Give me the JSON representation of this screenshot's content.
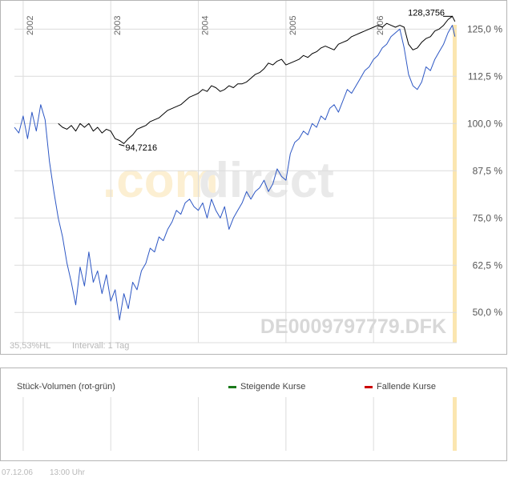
{
  "colors": {
    "grid": "#dcdcdc",
    "frame": "#b5b5b5",
    "blue_series": "#2d57c4",
    "black_series": "#000000",
    "highlight": "#fbe6b0",
    "rising": "#1a7a1a",
    "falling": "#cc0000",
    "watermark_com": "#fcefd2",
    "watermark_direct": "#e9e9e9"
  },
  "watermark": {
    "com": ".com",
    "direct": "direct"
  },
  "symbol_label": "DE0009797779.DFK",
  "info": {
    "hl": "35,53%HL",
    "interval": "Intervall: 1 Tag"
  },
  "footer": {
    "date": "07.12.06",
    "time": "13:00 Uhr"
  },
  "volume_panel": {
    "title": "Stück-Volumen (rot-grün)",
    "legend_rising": "Steigende Kurse",
    "legend_falling": "Fallende Kurse"
  },
  "chart_data": {
    "type": "line",
    "x_ticks": [
      "2002",
      "2003",
      "2004",
      "2005",
      "2006"
    ],
    "y_ticks": [
      "125,0 %",
      "112,5 %",
      "100,0 %",
      "87,5 %",
      "75,0 %",
      "62,5 %",
      "50,0 %"
    ],
    "y_tick_values": [
      125,
      112.5,
      100,
      87.5,
      75,
      62.5,
      50
    ],
    "ylim": [
      42,
      131
    ],
    "xlim": [
      2001.9,
      2006.95
    ],
    "annotations": [
      {
        "text": "94,7216",
        "x": 2003.12,
        "y": 94.72
      },
      {
        "text": "128,3756",
        "x": 2006.85,
        "y": 128.38
      }
    ],
    "series": [
      {
        "color": "#2d57c4",
        "x": [
          2001.9,
          2001.95,
          2002.0,
          2002.05,
          2002.1,
          2002.15,
          2002.2,
          2002.25,
          2002.3,
          2002.35,
          2002.4,
          2002.45,
          2002.5,
          2002.55,
          2002.6,
          2002.65,
          2002.7,
          2002.75,
          2002.8,
          2002.85,
          2002.9,
          2002.95,
          2003.0,
          2003.05,
          2003.1,
          2003.15,
          2003.2,
          2003.25,
          2003.3,
          2003.35,
          2003.4,
          2003.45,
          2003.5,
          2003.55,
          2003.6,
          2003.65,
          2003.7,
          2003.75,
          2003.8,
          2003.85,
          2003.9,
          2003.95,
          2004.0,
          2004.05,
          2004.1,
          2004.15,
          2004.2,
          2004.25,
          2004.3,
          2004.35,
          2004.4,
          2004.45,
          2004.5,
          2004.55,
          2004.6,
          2004.65,
          2004.7,
          2004.75,
          2004.8,
          2004.85,
          2004.9,
          2004.95,
          2005.0,
          2005.05,
          2005.1,
          2005.15,
          2005.2,
          2005.25,
          2005.3,
          2005.35,
          2005.4,
          2005.45,
          2005.5,
          2005.55,
          2005.6,
          2005.65,
          2005.7,
          2005.75,
          2005.8,
          2005.85,
          2005.9,
          2005.95,
          2006.0,
          2006.05,
          2006.1,
          2006.15,
          2006.2,
          2006.25,
          2006.3,
          2006.35,
          2006.4,
          2006.45,
          2006.5,
          2006.55,
          2006.6,
          2006.65,
          2006.7,
          2006.75,
          2006.8,
          2006.85,
          2006.9,
          2006.93
        ],
        "y": [
          99,
          97.5,
          102,
          96,
          103,
          98,
          105,
          101,
          90,
          82,
          75,
          70,
          63,
          58,
          52,
          62,
          57,
          66,
          58,
          61,
          55,
          60,
          53,
          56,
          48,
          55,
          51,
          58,
          56,
          61,
          63,
          67,
          66,
          70,
          69,
          72,
          74,
          77,
          76,
          79,
          80,
          78,
          77,
          79,
          75,
          80,
          77,
          75,
          78,
          72,
          75,
          77,
          79,
          82,
          80,
          82,
          83,
          85,
          82,
          84,
          88,
          86,
          85,
          92,
          95,
          96,
          98,
          97,
          100,
          99,
          102,
          101,
          104,
          105,
          103,
          106,
          109,
          108,
          110,
          112,
          114,
          115,
          117,
          118,
          120,
          121,
          123,
          124,
          125,
          120,
          113,
          110,
          109,
          111,
          115,
          114,
          117,
          119,
          121,
          124,
          126,
          123
        ]
      },
      {
        "color": "#000000",
        "x": [
          2002.4,
          2002.45,
          2002.5,
          2002.55,
          2002.6,
          2002.65,
          2002.7,
          2002.75,
          2002.8,
          2002.85,
          2002.9,
          2002.95,
          2003.0,
          2003.05,
          2003.1,
          2003.15,
          2003.2,
          2003.25,
          2003.3,
          2003.35,
          2003.4,
          2003.45,
          2003.5,
          2003.55,
          2003.6,
          2003.65,
          2003.7,
          2003.75,
          2003.8,
          2003.85,
          2003.9,
          2003.95,
          2004.0,
          2004.05,
          2004.1,
          2004.15,
          2004.2,
          2004.25,
          2004.3,
          2004.35,
          2004.4,
          2004.45,
          2004.5,
          2004.55,
          2004.6,
          2004.65,
          2004.7,
          2004.75,
          2004.8,
          2004.85,
          2004.9,
          2004.95,
          2005.0,
          2005.05,
          2005.1,
          2005.15,
          2005.2,
          2005.25,
          2005.3,
          2005.35,
          2005.4,
          2005.45,
          2005.5,
          2005.55,
          2005.6,
          2005.65,
          2005.7,
          2005.75,
          2005.8,
          2005.85,
          2005.9,
          2005.95,
          2006.0,
          2006.05,
          2006.1,
          2006.15,
          2006.2,
          2006.25,
          2006.3,
          2006.35,
          2006.4,
          2006.45,
          2006.5,
          2006.55,
          2006.6,
          2006.65,
          2006.7,
          2006.75,
          2006.8,
          2006.85,
          2006.9,
          2006.93
        ],
        "y": [
          100,
          99,
          98.5,
          99.5,
          98,
          100,
          99,
          100,
          98,
          99,
          97.5,
          98.5,
          98,
          96,
          95.5,
          94.7,
          96,
          97,
          98.5,
          99,
          99.5,
          100.5,
          101,
          101.5,
          102.5,
          103.5,
          104,
          104.5,
          105,
          106,
          107,
          107.5,
          108,
          109,
          108.5,
          110,
          109.5,
          108.5,
          109,
          110,
          109.5,
          110.5,
          110.5,
          111,
          112,
          113,
          113.5,
          114.5,
          116,
          115.5,
          116.5,
          117,
          115.5,
          116,
          116.5,
          117,
          118,
          117.5,
          118.5,
          119,
          120,
          120.5,
          120,
          119.5,
          121,
          121.5,
          122,
          123,
          123.5,
          124,
          124.5,
          125,
          125.5,
          126,
          125.5,
          126.5,
          126,
          125.5,
          126,
          125.5,
          121,
          119.5,
          120,
          121.5,
          122.5,
          123,
          124.5,
          125,
          126,
          127.5,
          128.4,
          127
        ]
      }
    ]
  }
}
